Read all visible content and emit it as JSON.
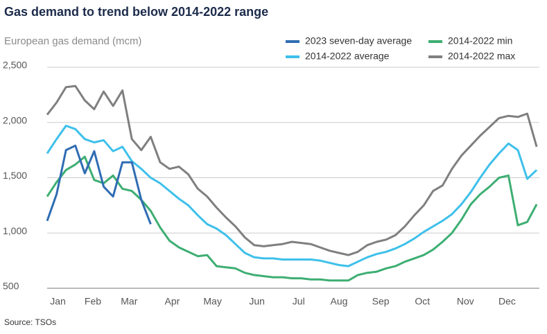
{
  "chart_data": {
    "type": "line",
    "title": "Gas demand to trend below 2014-2022 range",
    "y_label": "European gas demand (mcm)",
    "source": "Source: TSOs",
    "x": [
      0,
      7,
      14,
      21,
      28,
      35,
      42,
      49,
      56,
      63,
      70,
      77,
      84,
      91,
      98,
      105,
      112,
      119,
      126,
      133,
      140,
      147,
      154,
      161,
      168,
      175,
      182,
      189,
      196,
      203,
      210,
      217,
      224,
      231,
      238,
      245,
      252,
      259,
      266,
      273,
      280,
      287,
      294,
      301,
      308,
      315,
      322,
      329,
      336,
      343,
      350,
      357,
      364
    ],
    "xlim": [
      0,
      366
    ],
    "xticks": [
      {
        "value": 8,
        "label": "Jan"
      },
      {
        "value": 34,
        "label": "Feb"
      },
      {
        "value": 61,
        "label": "Mar"
      },
      {
        "value": 93,
        "label": "Apr"
      },
      {
        "value": 123,
        "label": "May"
      },
      {
        "value": 156,
        "label": "Jun"
      },
      {
        "value": 187,
        "label": "Jul"
      },
      {
        "value": 217,
        "label": "Aug"
      },
      {
        "value": 248,
        "label": "Sep"
      },
      {
        "value": 279,
        "label": "Oct"
      },
      {
        "value": 311,
        "label": "Nov"
      },
      {
        "value": 342,
        "label": "Dec"
      }
    ],
    "ylim": [
      500,
      2500
    ],
    "yticks": [
      500,
      {
        "value": 1000,
        "label": "1,000"
      },
      {
        "value": 1500,
        "label": "1,500"
      },
      {
        "value": 2000,
        "label": "2,000"
      },
      {
        "value": 2500,
        "label": "2,500"
      }
    ],
    "grid": true,
    "series": [
      {
        "name": "2023 seven-day average",
        "color": "#2f6cb3",
        "values": [
          1110,
          1350,
          1750,
          1790,
          1540,
          1740,
          1420,
          1330,
          1640,
          1640,
          1300,
          1080,
          null,
          null,
          null,
          null,
          null,
          null,
          null,
          null,
          null,
          null,
          null,
          null,
          null,
          null,
          null,
          null,
          null,
          null,
          null,
          null,
          null,
          null,
          null,
          null,
          null,
          null,
          null,
          null,
          null,
          null,
          null,
          null,
          null,
          null,
          null,
          null,
          null,
          null,
          null,
          null,
          null
        ]
      },
      {
        "name": "2014-2022 average",
        "color": "#3ec0ea",
        "values": [
          1720,
          1850,
          1970,
          1940,
          1850,
          1820,
          1840,
          1740,
          1780,
          1650,
          1580,
          1500,
          1450,
          1380,
          1310,
          1250,
          1160,
          1080,
          1040,
          980,
          900,
          820,
          780,
          770,
          770,
          760,
          760,
          760,
          760,
          750,
          730,
          710,
          700,
          740,
          780,
          810,
          830,
          860,
          900,
          950,
          1010,
          1060,
          1110,
          1170,
          1260,
          1370,
          1500,
          1620,
          1720,
          1810,
          1750,
          1490,
          1570
        ]
      },
      {
        "name": "2014-2022 min",
        "color": "#3dae72",
        "values": [
          1330,
          1460,
          1570,
          1620,
          1690,
          1480,
          1450,
          1520,
          1400,
          1380,
          1300,
          1200,
          1050,
          930,
          870,
          830,
          790,
          800,
          700,
          690,
          680,
          640,
          620,
          610,
          600,
          600,
          590,
          590,
          580,
          580,
          570,
          570,
          570,
          620,
          640,
          650,
          680,
          700,
          740,
          770,
          800,
          850,
          920,
          1000,
          1120,
          1260,
          1350,
          1420,
          1500,
          1520,
          1070,
          1100,
          1260
        ]
      },
      {
        "name": "2014-2022 max",
        "color": "#7f7f7f",
        "values": [
          2070,
          2180,
          2320,
          2330,
          2200,
          2120,
          2280,
          2150,
          2290,
          1850,
          1750,
          1870,
          1640,
          1580,
          1600,
          1530,
          1400,
          1330,
          1230,
          1140,
          1060,
          960,
          890,
          880,
          890,
          900,
          920,
          910,
          900,
          870,
          840,
          820,
          800,
          830,
          890,
          920,
          940,
          980,
          1060,
          1160,
          1250,
          1380,
          1430,
          1580,
          1700,
          1790,
          1880,
          1960,
          2040,
          2060,
          2050,
          2080,
          1780
        ]
      }
    ]
  }
}
